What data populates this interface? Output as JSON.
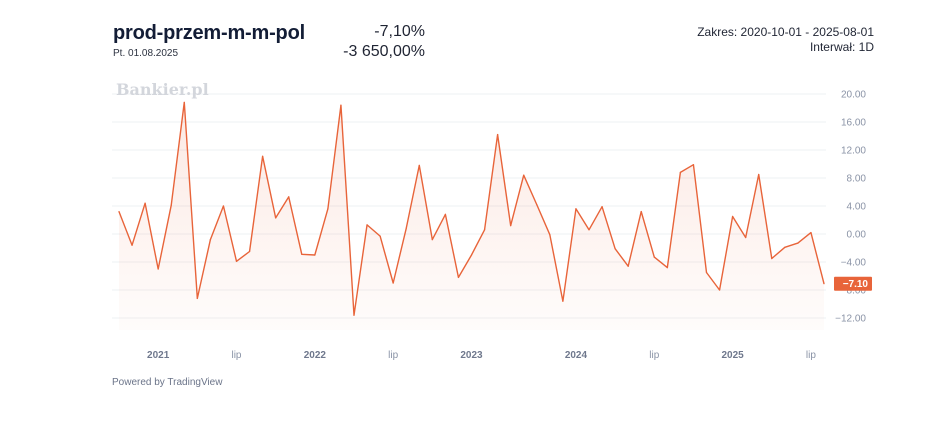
{
  "header": {
    "symbol": "prod-przem-m-m-pol",
    "date": "Pt. 01.08.2025",
    "change_pct": "-7,10%",
    "change_pct_pct": "-3 650,00%",
    "range": "Zakres: 2020-10-01 - 2025-08-01",
    "interval": "Interwał: 1D"
  },
  "watermark": "Bankier.pl",
  "footer": {
    "powered_by": "Powered by TradingView"
  },
  "colors": {
    "line": "#e8643a",
    "fill": "#fdecE6",
    "last_badge": "#e8643a",
    "grid": "#eef0f3"
  },
  "chart_data": {
    "type": "area",
    "title": "prod-przem-m-m-pol",
    "y_ticks": [
      "20.00",
      "16.00",
      "12.00",
      "8.00",
      "4.00",
      "0.00",
      "−4.00",
      "−8.00",
      "−12.00"
    ],
    "y_tick_values": [
      20,
      16,
      12,
      8,
      4,
      0,
      -4,
      -8,
      -12
    ],
    "ylim": [
      -13.5,
      21
    ],
    "x_labels": [
      {
        "text": "2021",
        "index": 3,
        "year": true
      },
      {
        "text": "lip",
        "index": 9,
        "year": false
      },
      {
        "text": "2022",
        "index": 15,
        "year": true
      },
      {
        "text": "lip",
        "index": 21,
        "year": false
      },
      {
        "text": "2023",
        "index": 27,
        "year": true
      },
      {
        "text": "2024",
        "index": 35,
        "year": true
      },
      {
        "text": "lip",
        "index": 41,
        "year": false
      },
      {
        "text": "2025",
        "index": 47,
        "year": true
      },
      {
        "text": "lip",
        "index": 53,
        "year": false
      }
    ],
    "x_start": "2020-10-01",
    "x_end": "2025-08-01",
    "values": [
      3.2,
      -1.6,
      4.4,
      -5.0,
      4.1,
      18.8,
      -9.2,
      -0.8,
      4.0,
      -3.9,
      -2.5,
      11.1,
      2.3,
      5.3,
      -2.9,
      -3.0,
      3.6,
      18.4,
      -11.6,
      1.3,
      -0.3,
      -7.0,
      0.8,
      9.8,
      -0.8,
      2.8,
      -6.2,
      -3.0,
      0.6,
      14.2,
      1.2,
      8.4,
      4.2,
      -0.1,
      -9.6,
      3.6,
      0.6,
      3.9,
      -2.1,
      -4.6,
      3.2,
      -3.3,
      -4.8,
      8.8,
      9.9,
      -5.5,
      -8.0,
      2.5,
      -0.5,
      8.5,
      -3.5,
      -1.9,
      -1.3,
      0.2,
      -7.1
    ],
    "last_value_label": "−7.10"
  }
}
